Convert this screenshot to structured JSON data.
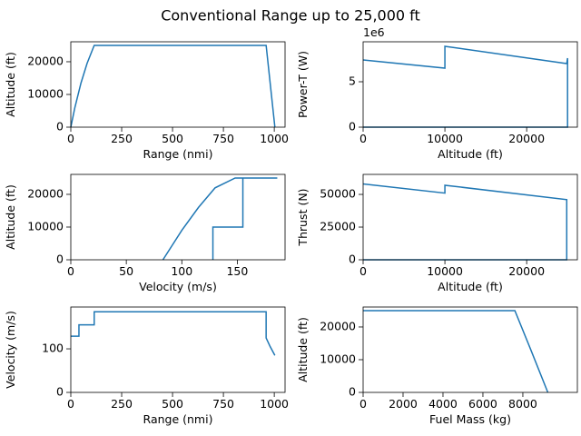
{
  "title": "Conventional Range up to 25,000 ft",
  "chart_data": [
    {
      "type": "line",
      "xlabel": "Range (nmi)",
      "ylabel": "Altitude (ft)",
      "color": "#1f77b4",
      "x": [
        0,
        20,
        50,
        80,
        115,
        960,
        1003
      ],
      "values": [
        0,
        6000,
        13500,
        19500,
        25000,
        25000,
        0
      ],
      "xlim": [
        0,
        1053
      ],
      "ylim": [
        0,
        26100
      ],
      "xticks": [
        0,
        250,
        500,
        750,
        1000
      ],
      "yticks": [
        0,
        10000,
        20000
      ]
    },
    {
      "type": "line",
      "xlabel": "Altitude (ft)",
      "ylabel": "Power-T (W)",
      "y_offset_label": "1e6",
      "color": "#1f77b4",
      "x": [
        0,
        10000,
        10000,
        24900,
        25000,
        25000,
        0
      ],
      "values": [
        7400000,
        6500000,
        8900000,
        7000000,
        7600000,
        0,
        0
      ],
      "xlim": [
        0,
        26200
      ],
      "ylim": [
        0,
        9400000
      ],
      "xticks": [
        0,
        10000,
        20000
      ],
      "yticks": [
        0,
        {
          "value": 5000000,
          "label": "5"
        }
      ]
    },
    {
      "type": "line",
      "xlabel": "Velocity (m/s)",
      "ylabel": "Altitude (ft)",
      "color": "#1f77b4",
      "x": [
        128,
        128,
        155,
        155,
        186,
        148,
        130,
        115,
        100,
        83
      ],
      "values": [
        0,
        10000,
        10000,
        25000,
        25000,
        25000,
        22000,
        16000,
        9000,
        0
      ],
      "xlim": [
        0,
        193
      ],
      "ylim": [
        0,
        26100
      ],
      "xticks": [
        0,
        50,
        100,
        150
      ],
      "yticks": [
        0,
        10000,
        20000
      ]
    },
    {
      "type": "line",
      "xlabel": "Altitude (ft)",
      "ylabel": "Thrust (N)",
      "color": "#1f77b4",
      "x": [
        0,
        10000,
        10000,
        24900,
        24900,
        0
      ],
      "values": [
        58000,
        51000,
        57000,
        46000,
        0,
        0
      ],
      "xlim": [
        0,
        26200
      ],
      "ylim": [
        0,
        65300
      ],
      "xticks": [
        0,
        10000,
        20000
      ],
      "yticks": [
        0,
        25000,
        50000
      ]
    },
    {
      "type": "line",
      "xlabel": "Range (nmi)",
      "ylabel": "Velocity (m/s)",
      "color": "#1f77b4",
      "x": [
        0,
        40,
        40,
        115,
        115,
        960,
        960,
        980,
        1003
      ],
      "values": [
        129,
        129,
        155,
        155,
        185,
        185,
        125,
        105,
        85
      ],
      "xlim": [
        0,
        1053
      ],
      "ylim": [
        0,
        196
      ],
      "xticks": [
        0,
        250,
        500,
        750,
        1000
      ],
      "yticks": [
        0,
        100
      ]
    },
    {
      "type": "line",
      "xlabel": "Fuel Mass (kg)",
      "ylabel": "Altitude (ft)",
      "color": "#1f77b4",
      "x": [
        0,
        7600,
        8400,
        9250
      ],
      "values": [
        25000,
        25000,
        13000,
        0
      ],
      "xlim": [
        0,
        10730
      ],
      "ylim": [
        0,
        26100
      ],
      "xticks": [
        0,
        2000,
        4000,
        6000,
        8000
      ],
      "yticks": [
        0,
        10000,
        20000
      ]
    }
  ]
}
